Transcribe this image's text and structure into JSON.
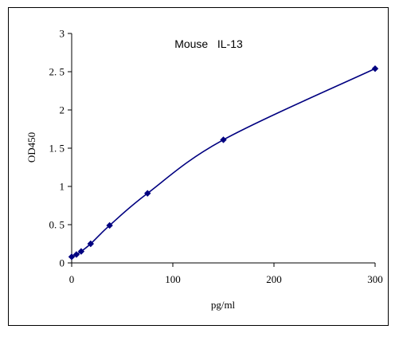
{
  "chart_data": {
    "type": "line",
    "title": "Mouse   IL-13",
    "xlabel": "pg/ml",
    "ylabel": "OD450",
    "xlim": [
      0,
      300
    ],
    "ylim": [
      0,
      3
    ],
    "x_ticks": [
      0,
      100,
      200,
      300
    ],
    "y_ticks": [
      0,
      0.5,
      1,
      1.5,
      2,
      2.5,
      3
    ],
    "y_tick_labels": [
      "0",
      "0. 5",
      "1",
      "1. 5",
      "2",
      "2. 5",
      "3"
    ],
    "grid": false,
    "legend": "none",
    "series": [
      {
        "color": "#000080",
        "marker": "diamond",
        "x": [
          0,
          4.69,
          9.38,
          18.75,
          37.5,
          75,
          150,
          300
        ],
        "y": [
          0.08,
          0.11,
          0.15,
          0.25,
          0.49,
          0.91,
          1.61,
          2.54
        ]
      }
    ]
  }
}
